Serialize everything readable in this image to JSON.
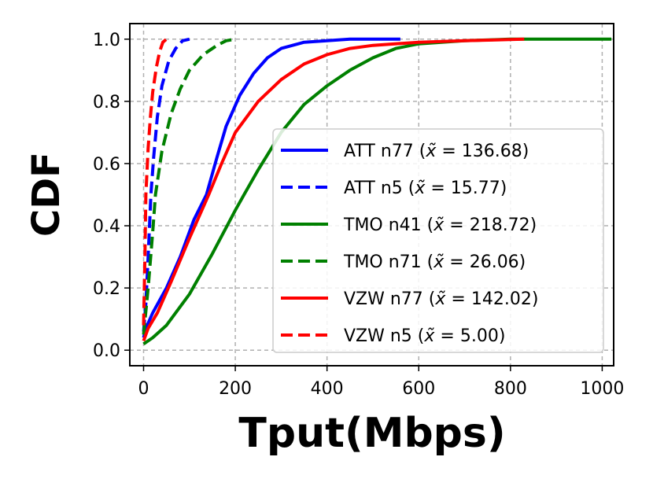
{
  "chart_data": {
    "type": "line",
    "xlabel": "Tput(Mbps)",
    "ylabel": "CDF",
    "xlim": [
      -30,
      1025
    ],
    "ylim": [
      -0.05,
      1.05
    ],
    "xticks": [
      0,
      200,
      400,
      600,
      800,
      1000
    ],
    "yticks": [
      0.0,
      0.2,
      0.4,
      0.6,
      0.8,
      1.0
    ],
    "xtick_labels": [
      "0",
      "200",
      "400",
      "600",
      "800",
      "1000"
    ],
    "ytick_labels": [
      "0.0",
      "0.2",
      "0.4",
      "0.6",
      "0.8",
      "1.0"
    ],
    "grid": true,
    "legend_position": "lower-right",
    "series": [
      {
        "name": "ATT n77 ($\\tilde{x}=136.68$)",
        "legend": [
          "ATT n77 (",
          "x̃",
          " = 136.68)"
        ],
        "color": "#0000ff",
        "dash": "solid",
        "points": [
          [
            0,
            0.04
          ],
          [
            5,
            0.07
          ],
          [
            20,
            0.12
          ],
          [
            50,
            0.2
          ],
          [
            80,
            0.3
          ],
          [
            110,
            0.42
          ],
          [
            137,
            0.5
          ],
          [
            160,
            0.62
          ],
          [
            180,
            0.72
          ],
          [
            210,
            0.82
          ],
          [
            240,
            0.89
          ],
          [
            270,
            0.94
          ],
          [
            300,
            0.97
          ],
          [
            350,
            0.99
          ],
          [
            400,
            0.995
          ],
          [
            450,
            1.0
          ],
          [
            560,
            1.0
          ]
        ]
      },
      {
        "name": "ATT n5 ($\\tilde{x}=15.77$)",
        "legend": [
          "ATT n5 (",
          "x̃",
          " = 15.77)"
        ],
        "color": "#0000ff",
        "dash": "dashed",
        "points": [
          [
            0,
            0.06
          ],
          [
            5,
            0.15
          ],
          [
            10,
            0.3
          ],
          [
            16,
            0.5
          ],
          [
            22,
            0.62
          ],
          [
            30,
            0.75
          ],
          [
            40,
            0.85
          ],
          [
            55,
            0.93
          ],
          [
            70,
            0.97
          ],
          [
            85,
            0.995
          ],
          [
            100,
            1.0
          ]
        ]
      },
      {
        "name": "TMO n41 ($\\tilde{x}=218.72$)",
        "legend": [
          "TMO n41 (",
          "x̃",
          " = 218.72)"
        ],
        "color": "#008000",
        "dash": "solid",
        "points": [
          [
            0,
            0.02
          ],
          [
            20,
            0.04
          ],
          [
            50,
            0.08
          ],
          [
            100,
            0.18
          ],
          [
            150,
            0.31
          ],
          [
            200,
            0.45
          ],
          [
            219,
            0.5
          ],
          [
            250,
            0.58
          ],
          [
            300,
            0.7
          ],
          [
            350,
            0.79
          ],
          [
            400,
            0.85
          ],
          [
            450,
            0.9
          ],
          [
            500,
            0.94
          ],
          [
            550,
            0.97
          ],
          [
            600,
            0.985
          ],
          [
            700,
            0.995
          ],
          [
            800,
            1.0
          ],
          [
            1020,
            1.0
          ]
        ]
      },
      {
        "name": "TMO n71 ($\\tilde{x}=26.06$)",
        "legend": [
          "TMO n71 (",
          "x̃",
          " = 26.06)"
        ],
        "color": "#008000",
        "dash": "dashed",
        "points": [
          [
            0,
            0.05
          ],
          [
            10,
            0.2
          ],
          [
            20,
            0.38
          ],
          [
            26,
            0.5
          ],
          [
            40,
            0.64
          ],
          [
            60,
            0.76
          ],
          [
            80,
            0.84
          ],
          [
            100,
            0.9
          ],
          [
            130,
            0.95
          ],
          [
            160,
            0.98
          ],
          [
            180,
            0.995
          ],
          [
            200,
            1.0
          ]
        ]
      },
      {
        "name": "VZW n77 ($\\tilde{x}=142.02$)",
        "legend": [
          "VZW n77 (",
          "x̃",
          " = 142.02)"
        ],
        "color": "#ff0000",
        "dash": "solid",
        "points": [
          [
            0,
            0.03
          ],
          [
            10,
            0.07
          ],
          [
            30,
            0.12
          ],
          [
            60,
            0.22
          ],
          [
            100,
            0.36
          ],
          [
            142,
            0.5
          ],
          [
            170,
            0.6
          ],
          [
            200,
            0.7
          ],
          [
            250,
            0.8
          ],
          [
            300,
            0.87
          ],
          [
            350,
            0.92
          ],
          [
            400,
            0.95
          ],
          [
            450,
            0.97
          ],
          [
            500,
            0.98
          ],
          [
            600,
            0.99
          ],
          [
            700,
            0.995
          ],
          [
            830,
            1.0
          ]
        ]
      },
      {
        "name": "VZW n5 ($\\tilde{x}=5.00$)",
        "legend": [
          "VZW n5 (",
          "x̃",
          " = 5.00)"
        ],
        "color": "#ff0000",
        "dash": "dashed",
        "points": [
          [
            0,
            0.08
          ],
          [
            3,
            0.3
          ],
          [
            5,
            0.5
          ],
          [
            10,
            0.65
          ],
          [
            15,
            0.75
          ],
          [
            20,
            0.83
          ],
          [
            28,
            0.91
          ],
          [
            35,
            0.96
          ],
          [
            42,
            0.99
          ],
          [
            50,
            1.0
          ]
        ]
      }
    ]
  }
}
